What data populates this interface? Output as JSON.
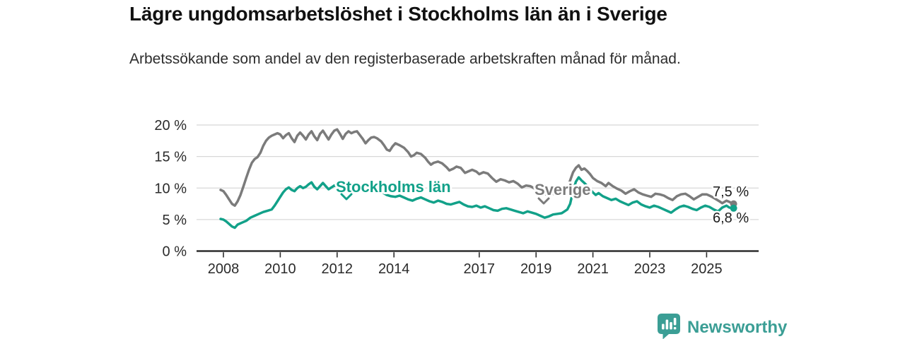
{
  "header": {
    "title": "Lägre ungdomsarbetslöshet i Stockholms län än i Sverige",
    "subtitle": "Arbetssökande som andel av den registerbaserade arbetskraften månad för månad."
  },
  "colors": {
    "grid": "#d8d8d8",
    "axis": "#2d2d2d",
    "tick_text": "#2b2b2b",
    "sweden_line": "#7b7b7b",
    "stockholm_line": "#12a189",
    "brand": "#3b9e95"
  },
  "chart_data": {
    "type": "line",
    "unit": "% av registerbaserad arbetskraft",
    "x_axis": {
      "tick_labels": [
        "2008",
        "2010",
        "2012",
        "2014",
        "2017",
        "2019",
        "2021",
        "2023",
        "2025"
      ],
      "tick_years": [
        2008,
        2010,
        2012,
        2014,
        2017,
        2019,
        2021,
        2023,
        2025
      ],
      "range": [
        2007.9,
        2026.0
      ],
      "grid": false
    },
    "y_axis": {
      "tick_labels": [
        "0 %",
        "5 %",
        "10 %",
        "15 %",
        "20 %"
      ],
      "tick_values": [
        0,
        5,
        10,
        15,
        20
      ],
      "range": [
        0,
        20
      ],
      "grid": true
    },
    "series": [
      {
        "name": "Sverige",
        "label": "Sverige",
        "color": "#7b7b7b",
        "end_label": "7,5 %",
        "end_value": 7.5,
        "points": [
          [
            2007.9,
            9.7
          ],
          [
            2008.0,
            9.5
          ],
          [
            2008.1,
            8.9
          ],
          [
            2008.2,
            8.2
          ],
          [
            2008.3,
            7.5
          ],
          [
            2008.4,
            7.2
          ],
          [
            2008.5,
            7.9
          ],
          [
            2008.6,
            8.9
          ],
          [
            2008.7,
            10.2
          ],
          [
            2008.8,
            11.6
          ],
          [
            2008.9,
            12.9
          ],
          [
            2009.0,
            14.0
          ],
          [
            2009.1,
            14.6
          ],
          [
            2009.2,
            14.9
          ],
          [
            2009.3,
            15.6
          ],
          [
            2009.4,
            16.7
          ],
          [
            2009.5,
            17.5
          ],
          [
            2009.6,
            18.0
          ],
          [
            2009.7,
            18.3
          ],
          [
            2009.8,
            18.5
          ],
          [
            2009.9,
            18.7
          ],
          [
            2010.0,
            18.5
          ],
          [
            2010.1,
            17.9
          ],
          [
            2010.2,
            18.4
          ],
          [
            2010.3,
            18.7
          ],
          [
            2010.4,
            17.9
          ],
          [
            2010.5,
            17.3
          ],
          [
            2010.6,
            18.3
          ],
          [
            2010.7,
            18.8
          ],
          [
            2010.8,
            18.3
          ],
          [
            2010.9,
            17.7
          ],
          [
            2011.0,
            18.5
          ],
          [
            2011.1,
            19.0
          ],
          [
            2011.2,
            18.2
          ],
          [
            2011.3,
            17.6
          ],
          [
            2011.4,
            18.6
          ],
          [
            2011.5,
            19.1
          ],
          [
            2011.6,
            18.4
          ],
          [
            2011.7,
            17.7
          ],
          [
            2011.8,
            18.5
          ],
          [
            2011.9,
            19.1
          ],
          [
            2012.0,
            19.3
          ],
          [
            2012.1,
            18.6
          ],
          [
            2012.2,
            17.8
          ],
          [
            2012.3,
            18.6
          ],
          [
            2012.4,
            19.0
          ],
          [
            2012.5,
            18.7
          ],
          [
            2012.6,
            18.9
          ],
          [
            2012.7,
            19.0
          ],
          [
            2012.8,
            18.4
          ],
          [
            2012.9,
            17.8
          ],
          [
            2013.0,
            17.1
          ],
          [
            2013.1,
            17.6
          ],
          [
            2013.2,
            18.0
          ],
          [
            2013.3,
            18.1
          ],
          [
            2013.4,
            17.9
          ],
          [
            2013.55,
            17.4
          ],
          [
            2013.65,
            16.8
          ],
          [
            2013.75,
            16.1
          ],
          [
            2013.85,
            15.9
          ],
          [
            2013.95,
            16.6
          ],
          [
            2014.05,
            17.1
          ],
          [
            2014.2,
            16.8
          ],
          [
            2014.35,
            16.4
          ],
          [
            2014.5,
            15.7
          ],
          [
            2014.6,
            15.0
          ],
          [
            2014.7,
            15.2
          ],
          [
            2014.8,
            15.6
          ],
          [
            2014.95,
            15.4
          ],
          [
            2015.1,
            14.8
          ],
          [
            2015.2,
            14.2
          ],
          [
            2015.3,
            13.7
          ],
          [
            2015.4,
            14.0
          ],
          [
            2015.55,
            14.2
          ],
          [
            2015.7,
            13.9
          ],
          [
            2015.85,
            13.3
          ],
          [
            2015.95,
            12.8
          ],
          [
            2016.1,
            13.1
          ],
          [
            2016.2,
            13.4
          ],
          [
            2016.35,
            13.2
          ],
          [
            2016.5,
            12.4
          ],
          [
            2016.6,
            12.6
          ],
          [
            2016.75,
            12.9
          ],
          [
            2016.9,
            12.6
          ],
          [
            2017.0,
            12.2
          ],
          [
            2017.15,
            12.5
          ],
          [
            2017.3,
            12.3
          ],
          [
            2017.45,
            11.6
          ],
          [
            2017.6,
            11.0
          ],
          [
            2017.75,
            11.4
          ],
          [
            2017.9,
            11.2
          ],
          [
            2018.05,
            10.9
          ],
          [
            2018.2,
            11.1
          ],
          [
            2018.35,
            10.7
          ],
          [
            2018.5,
            10.1
          ],
          [
            2018.65,
            10.4
          ],
          [
            2018.8,
            10.3
          ],
          [
            2018.95,
            9.9
          ],
          [
            2019.1,
            9.5
          ],
          [
            2019.25,
            9.2
          ],
          [
            2019.4,
            8.9
          ],
          [
            2019.55,
            9.2
          ],
          [
            2019.7,
            8.9
          ],
          [
            2019.85,
            9.2
          ],
          [
            2020.0,
            9.5
          ],
          [
            2020.1,
            9.9
          ],
          [
            2020.2,
            11.2
          ],
          [
            2020.3,
            12.5
          ],
          [
            2020.4,
            13.2
          ],
          [
            2020.5,
            13.6
          ],
          [
            2020.6,
            12.9
          ],
          [
            2020.7,
            13.1
          ],
          [
            2020.8,
            12.7
          ],
          [
            2020.9,
            12.2
          ],
          [
            2021.0,
            11.6
          ],
          [
            2021.15,
            11.1
          ],
          [
            2021.3,
            10.8
          ],
          [
            2021.45,
            10.3
          ],
          [
            2021.55,
            10.8
          ],
          [
            2021.7,
            10.3
          ],
          [
            2021.85,
            9.9
          ],
          [
            2022.0,
            9.6
          ],
          [
            2022.15,
            9.1
          ],
          [
            2022.3,
            9.5
          ],
          [
            2022.45,
            9.8
          ],
          [
            2022.6,
            9.3
          ],
          [
            2022.75,
            9.0
          ],
          [
            2022.9,
            8.8
          ],
          [
            2023.05,
            8.6
          ],
          [
            2023.2,
            9.1
          ],
          [
            2023.35,
            9.0
          ],
          [
            2023.5,
            8.8
          ],
          [
            2023.65,
            8.4
          ],
          [
            2023.8,
            8.1
          ],
          [
            2023.95,
            8.7
          ],
          [
            2024.1,
            9.0
          ],
          [
            2024.25,
            9.1
          ],
          [
            2024.4,
            8.7
          ],
          [
            2024.55,
            8.2
          ],
          [
            2024.7,
            8.6
          ],
          [
            2024.85,
            9.0
          ],
          [
            2025.0,
            9.0
          ],
          [
            2025.15,
            8.7
          ],
          [
            2025.3,
            8.3
          ],
          [
            2025.45,
            7.9
          ],
          [
            2025.55,
            7.6
          ],
          [
            2025.7,
            8.0
          ],
          [
            2025.8,
            7.8
          ],
          [
            2025.95,
            7.5
          ]
        ]
      },
      {
        "name": "Stockholms län",
        "label": "Stockholms län",
        "color": "#12a189",
        "end_label": "6,8 %",
        "end_value": 6.8,
        "points": [
          [
            2007.9,
            5.1
          ],
          [
            2008.0,
            5.0
          ],
          [
            2008.1,
            4.7
          ],
          [
            2008.2,
            4.3
          ],
          [
            2008.3,
            3.9
          ],
          [
            2008.4,
            3.7
          ],
          [
            2008.5,
            4.2
          ],
          [
            2008.65,
            4.5
          ],
          [
            2008.8,
            4.8
          ],
          [
            2008.95,
            5.3
          ],
          [
            2009.1,
            5.6
          ],
          [
            2009.25,
            5.9
          ],
          [
            2009.4,
            6.2
          ],
          [
            2009.55,
            6.4
          ],
          [
            2009.7,
            6.6
          ],
          [
            2009.8,
            7.2
          ],
          [
            2009.9,
            7.9
          ],
          [
            2010.0,
            8.6
          ],
          [
            2010.1,
            9.3
          ],
          [
            2010.2,
            9.8
          ],
          [
            2010.3,
            10.1
          ],
          [
            2010.4,
            9.7
          ],
          [
            2010.5,
            9.5
          ],
          [
            2010.6,
            10.0
          ],
          [
            2010.7,
            10.3
          ],
          [
            2010.8,
            10.0
          ],
          [
            2010.9,
            10.2
          ],
          [
            2011.0,
            10.6
          ],
          [
            2011.1,
            10.9
          ],
          [
            2011.2,
            10.2
          ],
          [
            2011.3,
            9.8
          ],
          [
            2011.4,
            10.3
          ],
          [
            2011.5,
            10.8
          ],
          [
            2011.6,
            10.3
          ],
          [
            2011.7,
            9.8
          ],
          [
            2011.8,
            10.1
          ],
          [
            2011.9,
            10.4
          ],
          [
            2012.0,
            10.2
          ],
          [
            2012.1,
            9.8
          ],
          [
            2012.2,
            9.5
          ],
          [
            2012.3,
            10.0
          ],
          [
            2012.4,
            10.4
          ],
          [
            2012.5,
            10.2
          ],
          [
            2012.6,
            10.1
          ],
          [
            2012.7,
            10.4
          ],
          [
            2012.8,
            10.1
          ],
          [
            2012.9,
            9.7
          ],
          [
            2013.0,
            9.3
          ],
          [
            2013.15,
            9.7
          ],
          [
            2013.3,
            10.0
          ],
          [
            2013.45,
            9.7
          ],
          [
            2013.6,
            9.3
          ],
          [
            2013.75,
            8.9
          ],
          [
            2013.9,
            8.7
          ],
          [
            2014.05,
            8.6
          ],
          [
            2014.2,
            8.8
          ],
          [
            2014.35,
            8.5
          ],
          [
            2014.5,
            8.2
          ],
          [
            2014.65,
            8.0
          ],
          [
            2014.8,
            8.3
          ],
          [
            2014.95,
            8.5
          ],
          [
            2015.1,
            8.2
          ],
          [
            2015.25,
            7.9
          ],
          [
            2015.4,
            7.7
          ],
          [
            2015.55,
            8.0
          ],
          [
            2015.7,
            7.8
          ],
          [
            2015.85,
            7.5
          ],
          [
            2016.0,
            7.4
          ],
          [
            2016.15,
            7.6
          ],
          [
            2016.3,
            7.8
          ],
          [
            2016.45,
            7.4
          ],
          [
            2016.6,
            7.1
          ],
          [
            2016.75,
            7.0
          ],
          [
            2016.9,
            7.2
          ],
          [
            2017.05,
            6.9
          ],
          [
            2017.2,
            7.1
          ],
          [
            2017.35,
            6.8
          ],
          [
            2017.5,
            6.5
          ],
          [
            2017.65,
            6.4
          ],
          [
            2017.8,
            6.7
          ],
          [
            2017.95,
            6.8
          ],
          [
            2018.1,
            6.6
          ],
          [
            2018.25,
            6.4
          ],
          [
            2018.4,
            6.2
          ],
          [
            2018.55,
            6.0
          ],
          [
            2018.7,
            6.3
          ],
          [
            2018.85,
            6.1
          ],
          [
            2019.0,
            5.9
          ],
          [
            2019.15,
            5.6
          ],
          [
            2019.3,
            5.3
          ],
          [
            2019.45,
            5.5
          ],
          [
            2019.6,
            5.8
          ],
          [
            2019.75,
            5.9
          ],
          [
            2019.9,
            6.0
          ],
          [
            2020.0,
            6.3
          ],
          [
            2020.1,
            6.6
          ],
          [
            2020.2,
            7.5
          ],
          [
            2020.3,
            9.5
          ],
          [
            2020.4,
            11.0
          ],
          [
            2020.5,
            11.7
          ],
          [
            2020.6,
            11.2
          ],
          [
            2020.7,
            10.8
          ],
          [
            2020.85,
            10.1
          ],
          [
            2021.0,
            9.3
          ],
          [
            2021.1,
            8.9
          ],
          [
            2021.2,
            9.2
          ],
          [
            2021.35,
            8.7
          ],
          [
            2021.5,
            8.4
          ],
          [
            2021.65,
            8.1
          ],
          [
            2021.8,
            8.3
          ],
          [
            2021.95,
            7.9
          ],
          [
            2022.1,
            7.6
          ],
          [
            2022.25,
            7.3
          ],
          [
            2022.4,
            7.7
          ],
          [
            2022.55,
            7.9
          ],
          [
            2022.7,
            7.4
          ],
          [
            2022.85,
            7.1
          ],
          [
            2023.0,
            6.9
          ],
          [
            2023.15,
            7.2
          ],
          [
            2023.3,
            7.0
          ],
          [
            2023.45,
            6.7
          ],
          [
            2023.6,
            6.4
          ],
          [
            2023.75,
            6.1
          ],
          [
            2023.9,
            6.6
          ],
          [
            2024.05,
            7.0
          ],
          [
            2024.2,
            7.2
          ],
          [
            2024.35,
            7.0
          ],
          [
            2024.5,
            6.7
          ],
          [
            2024.65,
            6.5
          ],
          [
            2024.8,
            6.9
          ],
          [
            2024.95,
            7.2
          ],
          [
            2025.1,
            7.0
          ],
          [
            2025.25,
            6.6
          ],
          [
            2025.4,
            6.3
          ],
          [
            2025.55,
            6.9
          ],
          [
            2025.7,
            7.2
          ],
          [
            2025.8,
            6.9
          ],
          [
            2025.95,
            6.8
          ]
        ]
      }
    ]
  },
  "footer": {
    "brand": "Newsworthy"
  }
}
